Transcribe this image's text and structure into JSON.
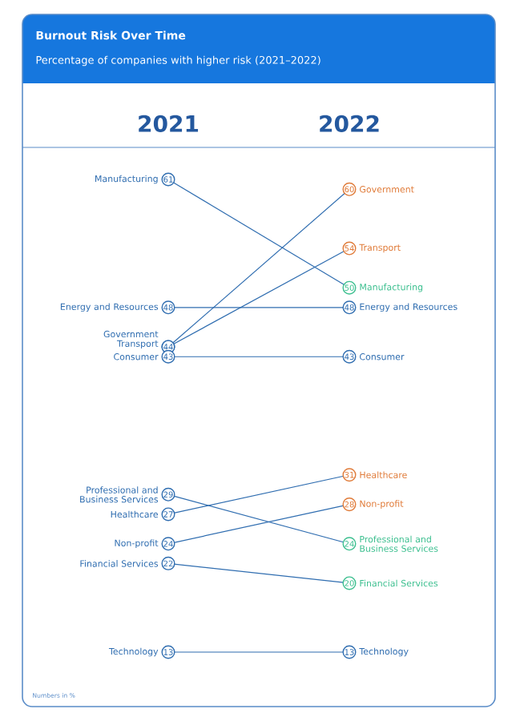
{
  "chart_data": {
    "type": "line",
    "title": "Burnout Risk Over Time",
    "subtitle": "Percentage of companies with higher risk (2021–2022)",
    "categories": [
      "2021",
      "2022"
    ],
    "marker": "circle",
    "annotations": [
      "Numbers in %"
    ],
    "series": [
      {
        "name": "Manufacturing",
        "color": "#2f6db0",
        "colors": [
          "#2f6db0",
          "#3cbf8f"
        ],
        "values": [
          61,
          50
        ],
        "value_labels": [
          "61",
          "50"
        ]
      },
      {
        "name": "Energy and Resources",
        "color": "#2f6db0",
        "colors": [
          "#2f6db0",
          "#2f6db0"
        ],
        "values": [
          48,
          48
        ],
        "value_labels": [
          "48",
          "48"
        ]
      },
      {
        "name": "Government",
        "color": "#2f6db0",
        "colors": [
          "#2f6db0",
          "#e07b39"
        ],
        "values": [
          44,
          60
        ],
        "value_labels": [
          "44",
          "60"
        ]
      },
      {
        "name": "Transport",
        "color": "#2f6db0",
        "colors": [
          "#2f6db0",
          "#e07b39"
        ],
        "values": [
          44,
          54
        ],
        "value_labels": [
          null,
          "54"
        ]
      },
      {
        "name": "Consumer",
        "color": "#2f6db0",
        "colors": [
          "#2f6db0",
          "#2f6db0"
        ],
        "values": [
          43,
          43
        ],
        "value_labels": [
          "43",
          "43"
        ]
      },
      {
        "name": "Professional and Business Services",
        "color": "#2f6db0",
        "colors": [
          "#2f6db0",
          "#3cbf8f"
        ],
        "values": [
          29,
          24
        ],
        "value_labels": [
          "29",
          "24"
        ]
      },
      {
        "name": "Healthcare",
        "color": "#2f6db0",
        "colors": [
          "#2f6db0",
          "#e07b39"
        ],
        "values": [
          27,
          31
        ],
        "value_labels": [
          "27",
          "31"
        ]
      },
      {
        "name": "Non-profit",
        "color": "#2f6db0",
        "colors": [
          "#2f6db0",
          "#e07b39"
        ],
        "values": [
          24,
          28
        ],
        "value_labels": [
          "24",
          "28"
        ]
      },
      {
        "name": "Financial Services",
        "color": "#2f6db0",
        "colors": [
          "#2f6db0",
          "#3cbf8f"
        ],
        "values": [
          22,
          20
        ],
        "value_labels": [
          "22",
          "20"
        ]
      },
      {
        "name": "Technology",
        "color": "#2f6db0",
        "colors": [
          "#2f6db0",
          "#2f6db0"
        ],
        "values": [
          13,
          13
        ],
        "value_labels": [
          "13",
          "13"
        ]
      }
    ]
  }
}
